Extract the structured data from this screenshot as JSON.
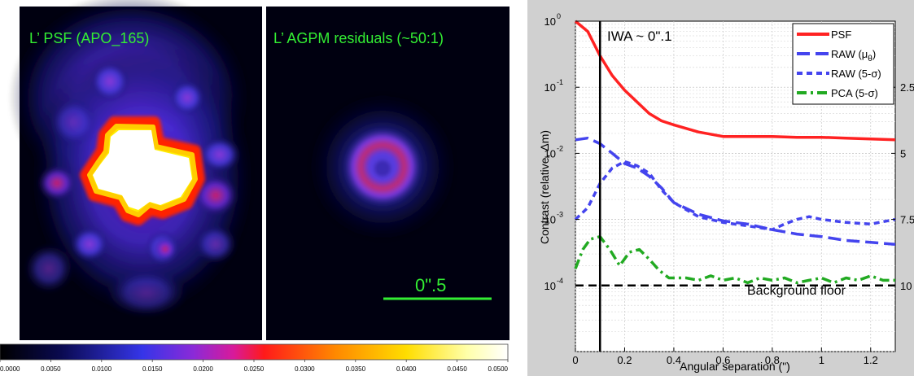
{
  "left_panel": {
    "psf_title": "L’ PSF (APO_165)",
    "residual_title": "L’ AGPM residuals (~50:1)",
    "scale_bar_label": "0\".5",
    "colorbar_ticks": [
      "0.0000",
      "0.0050",
      "0.0100",
      "0.0150",
      "0.0200",
      "0.0250",
      "0.0300",
      "0.0350",
      "0.0400",
      "0.0450",
      "0.0500"
    ],
    "colors": {
      "label_green": "#33ee33",
      "separator": "#ffffff"
    }
  },
  "chart_data": {
    "type": "line",
    "xlabel": "Angular separation (\")",
    "ylabel": "Contrast (relative, Δm)",
    "xlim": [
      0,
      1.3
    ],
    "ylim": [
      1e-05,
      1
    ],
    "yscale": "log",
    "grid": true,
    "x_ticks": [
      "0",
      "0.2",
      "0.4",
      "0.6",
      "0.8",
      "1",
      "1.2"
    ],
    "y_ticks": [
      {
        "base": "10",
        "exp": "0"
      },
      {
        "base": "10",
        "exp": "-1"
      },
      {
        "base": "10",
        "exp": "-2"
      },
      {
        "base": "10",
        "exp": "-3"
      },
      {
        "base": "10",
        "exp": "-4"
      }
    ],
    "right_ticks": [
      "2.5",
      "5",
      "7.5",
      "10"
    ],
    "iwa_label": "IWA ~ 0\".1",
    "iwa_x": 0.1,
    "floor_label": "Background floor",
    "floor_y": 0.0001,
    "legend_position": "top-right",
    "legend": [
      {
        "label": "PSF",
        "color": "#ff2222",
        "dash": "solid"
      },
      {
        "label": "RAW (μ",
        "sub": "θ",
        "tail": ")",
        "color": "#4444ee",
        "dash": "long"
      },
      {
        "label": "RAW (5-σ)",
        "color": "#4444ee",
        "dash": "short"
      },
      {
        "label": "PCA (5-σ)",
        "color": "#22aa22",
        "dash": "dashdot"
      }
    ],
    "series": [
      {
        "name": "PSF",
        "color": "#ff2222",
        "dash": "solid",
        "x": [
          0,
          0.05,
          0.1,
          0.15,
          0.2,
          0.25,
          0.3,
          0.35,
          0.4,
          0.5,
          0.6,
          0.7,
          0.8,
          0.9,
          1.0,
          1.1,
          1.2,
          1.3
        ],
        "y": [
          1.0,
          0.7,
          0.3,
          0.15,
          0.09,
          0.06,
          0.04,
          0.031,
          0.027,
          0.021,
          0.018,
          0.018,
          0.018,
          0.0175,
          0.0175,
          0.017,
          0.0165,
          0.016
        ]
      },
      {
        "name": "RAW (μθ)",
        "color": "#4444ee",
        "dash": "long",
        "x": [
          0,
          0.05,
          0.1,
          0.15,
          0.2,
          0.25,
          0.3,
          0.35,
          0.4,
          0.5,
          0.6,
          0.7,
          0.8,
          0.9,
          1.0,
          1.1,
          1.2,
          1.3
        ],
        "y": [
          0.016,
          0.017,
          0.014,
          0.01,
          0.007,
          0.006,
          0.0045,
          0.003,
          0.0018,
          0.0012,
          0.00095,
          0.00085,
          0.0007,
          0.0006,
          0.00055,
          0.00048,
          0.00045,
          0.00042
        ]
      },
      {
        "name": "RAW (5-σ)",
        "color": "#4444ee",
        "dash": "short",
        "x": [
          0,
          0.05,
          0.1,
          0.15,
          0.2,
          0.25,
          0.3,
          0.35,
          0.4,
          0.5,
          0.6,
          0.7,
          0.8,
          0.85,
          0.9,
          0.95,
          1.0,
          1.1,
          1.2,
          1.3
        ],
        "y": [
          0.001,
          0.0015,
          0.0035,
          0.006,
          0.0075,
          0.0065,
          0.005,
          0.0028,
          0.0018,
          0.0011,
          0.0009,
          0.0008,
          0.0007,
          0.00085,
          0.001,
          0.0011,
          0.001,
          0.0009,
          0.00085,
          0.001
        ]
      },
      {
        "name": "PCA (5-σ)",
        "color": "#22aa22",
        "dash": "dashdot",
        "x": [
          0,
          0.03,
          0.06,
          0.1,
          0.14,
          0.18,
          0.22,
          0.26,
          0.3,
          0.34,
          0.38,
          0.45,
          0.5,
          0.55,
          0.6,
          0.65,
          0.7,
          0.75,
          0.8,
          0.85,
          0.9,
          0.95,
          1.0,
          1.05,
          1.1,
          1.15,
          1.2,
          1.25,
          1.3
        ],
        "y": [
          0.00018,
          0.00035,
          0.0005,
          0.00055,
          0.00035,
          0.0002,
          0.00032,
          0.00035,
          0.00025,
          0.00017,
          0.00013,
          0.00013,
          0.00012,
          0.00014,
          0.00012,
          0.00013,
          0.00011,
          0.00013,
          0.00012,
          0.00013,
          0.00011,
          0.00012,
          0.00013,
          0.00011,
          0.00013,
          0.00012,
          0.00014,
          0.00012,
          0.00012
        ]
      }
    ]
  }
}
